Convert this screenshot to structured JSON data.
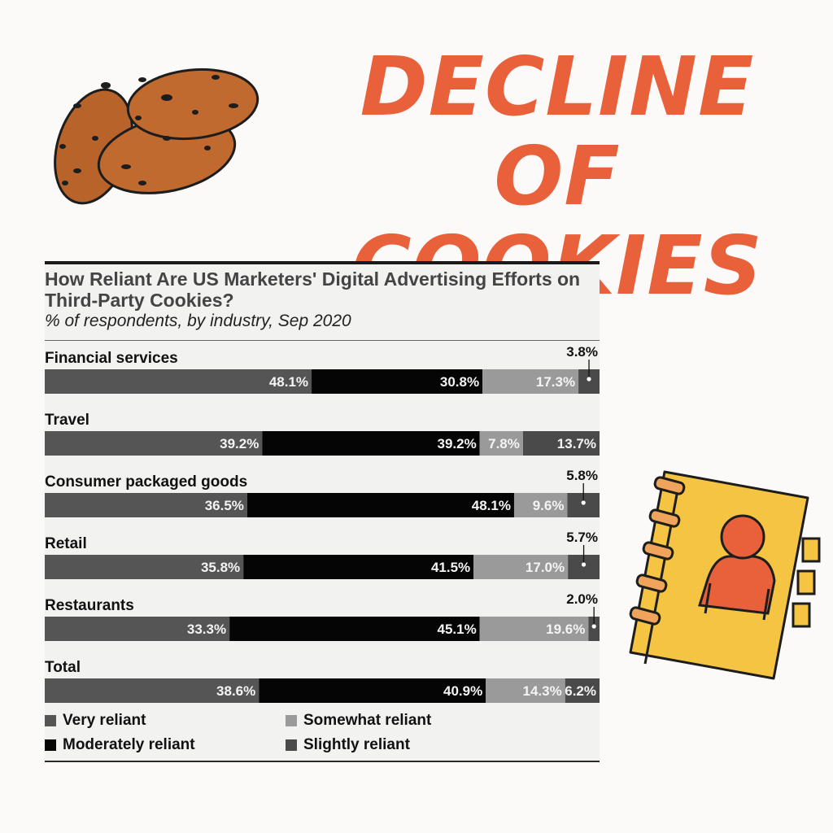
{
  "poster": {
    "title_line1": "DECLINE OF",
    "title_line2": "COOKIES",
    "accent": "#e8613a"
  },
  "illustrations": [
    "cookies-icon",
    "notebook-icon"
  ],
  "chart_data": {
    "type": "bar",
    "orientation": "horizontal",
    "stacked": true,
    "title": "How Reliant Are US Marketers' Digital Advertising Efforts on Third-Party Cookies?",
    "subtitle": "% of respondents, by industry, Sep 2020",
    "categories": [
      "Financial services",
      "Travel",
      "Consumer packaged goods",
      "Retail",
      "Restaurants",
      "Total"
    ],
    "series": [
      {
        "name": "Very reliant",
        "color": "#555555",
        "values": [
          48.1,
          39.2,
          36.5,
          35.8,
          33.3,
          38.6
        ],
        "labels": [
          "48.1%",
          "39.2%",
          "36.5%",
          "35.8%",
          "33.3%",
          "38.6%"
        ]
      },
      {
        "name": "Moderately reliant",
        "color": "#050505",
        "values": [
          30.8,
          39.2,
          48.1,
          41.5,
          45.1,
          40.9
        ],
        "labels": [
          "30.8%",
          "39.2%",
          "48.1%",
          "41.5%",
          "45.1%",
          "40.9%"
        ]
      },
      {
        "name": "Somewhat reliant",
        "color": "#9a9a9a",
        "values": [
          17.3,
          7.8,
          9.6,
          17.0,
          19.6,
          14.3
        ],
        "labels": [
          "17.3%",
          "7.8%",
          "9.6%",
          "17.0%",
          "19.6%",
          "14.3%"
        ]
      },
      {
        "name": "Slightly reliant",
        "color": "#4a4a4a",
        "values": [
          3.8,
          13.7,
          5.8,
          5.7,
          2.0,
          6.2
        ],
        "labels": [
          "3.8%",
          "13.7%",
          "5.8%",
          "5.7%",
          "2.0%",
          "6.2%"
        ]
      }
    ],
    "legend": [
      {
        "name": "Very reliant",
        "color": "#555555"
      },
      {
        "name": "Somewhat reliant",
        "color": "#9a9a9a"
      },
      {
        "name": "Moderately reliant",
        "color": "#050505"
      },
      {
        "name": "Slightly reliant",
        "color": "#4a4a4a"
      }
    ],
    "legend_position": "bottom",
    "xlim": [
      0,
      100
    ],
    "grid": false
  }
}
